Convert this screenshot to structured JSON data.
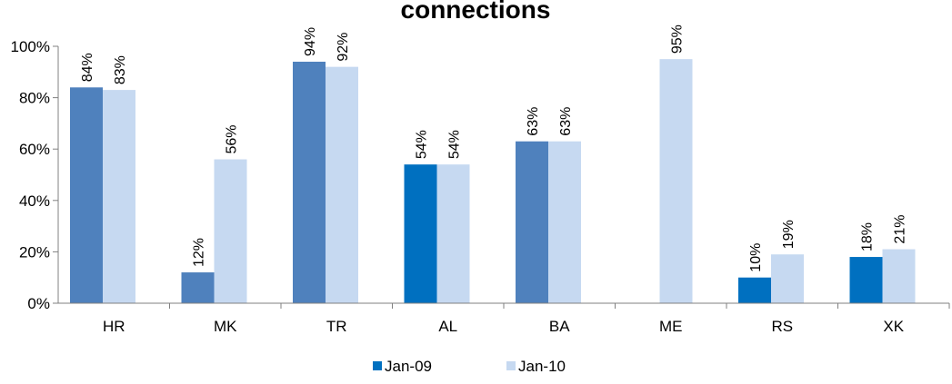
{
  "chart_data": {
    "type": "bar",
    "title": "connections",
    "categories": [
      "HR",
      "MK",
      "TR",
      "AL",
      "BA",
      "ME",
      "RS",
      "XK"
    ],
    "series": [
      {
        "name": "Jan-09",
        "values": [
          84,
          12,
          94,
          54,
          63,
          null,
          10,
          18
        ],
        "labels": [
          "84%",
          "12%",
          "94%",
          "54%",
          "63%",
          "",
          "10%",
          "18%"
        ],
        "colors": [
          "#4f81bd",
          "#4f81bd",
          "#4f81bd",
          "#0070c0",
          "#4f81bd",
          "#4f81bd",
          "#0070c0",
          "#0070c0"
        ],
        "legend_color": "#0070c0"
      },
      {
        "name": "Jan-10",
        "values": [
          83,
          56,
          92,
          54,
          63,
          95,
          19,
          21
        ],
        "labels": [
          "83%",
          "56%",
          "92%",
          "54%",
          "63%",
          "95%",
          "19%",
          "21%"
        ],
        "colors": [
          "#c6d9f1",
          "#c6d9f1",
          "#c6d9f1",
          "#c6d9f1",
          "#c6d9f1",
          "#c6d9f1",
          "#c6d9f1",
          "#c6d9f1"
        ],
        "legend_color": "#c6d9f1"
      }
    ],
    "ylim": [
      0,
      100
    ],
    "yticks": [
      0,
      20,
      40,
      60,
      80,
      100
    ],
    "ytick_labels": [
      "0%",
      "20%",
      "40%",
      "60%",
      "80%",
      "100%"
    ],
    "grid": false,
    "legend_position": "bottom-center"
  }
}
